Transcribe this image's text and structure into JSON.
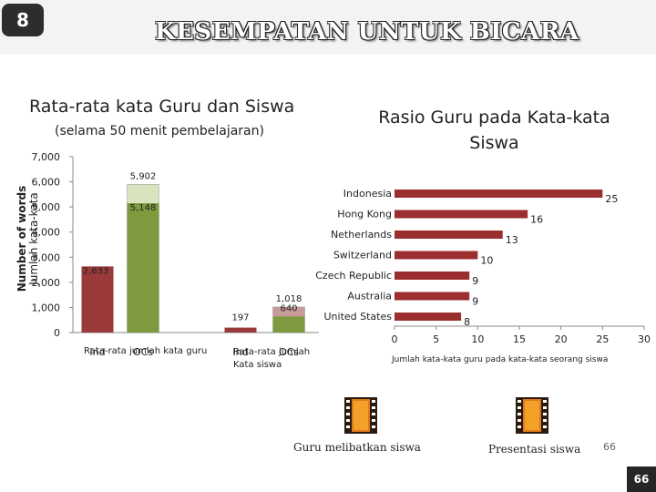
{
  "slide": {
    "number": "8",
    "headline": "KESEMPATAN UNTUK BICARA",
    "page_number_light": "66",
    "page_number_dark": "66"
  },
  "left_chart": {
    "title": "Rata-rata kata Guru dan Siswa",
    "subtitle": "(selama 50 menit pembelajaran)",
    "ylabel_1": "Number of words",
    "ylabel_2": "Jumlah kata-kata",
    "group_labels": [
      "Rata-rata jumlah kata guru",
      "Rata-rata jumlah Kata siswa"
    ]
  },
  "right_chart": {
    "title": "Rasio Guru pada Kata-kata Siswa",
    "xlabel": "Jumlah kata-kata guru pada kata-kata seorang siswa"
  },
  "icons": [
    {
      "name": "film-strip-icon",
      "caption": "Guru melibatkan siswa"
    },
    {
      "name": "film-strip-icon",
      "caption": "Presentasi siswa"
    }
  ],
  "colors": {
    "red_bar": "#9b3a3a",
    "green_bar": "#7e9a3f",
    "green_light": "#d8e4bf",
    "red_light": "#c99a9a",
    "hbar": "#9b2f2f"
  },
  "chart_data": [
    {
      "type": "bar",
      "title": "Rata-rata kata Guru dan Siswa",
      "ylabel": "Number of words",
      "ylim": [
        0,
        7000
      ],
      "yticks": [
        "0",
        "1,000",
        "2,000",
        "3,000",
        "4,000",
        "5,000",
        "6,000",
        "7,000"
      ],
      "categories": [
        "Ind",
        "OCs",
        "Ind",
        "OCs"
      ],
      "bars": [
        {
          "category": "Ind",
          "value": 2633,
          "label": "2,633",
          "stack": null
        },
        {
          "category": "OCs",
          "value": 5148,
          "label": "5,148",
          "stack": {
            "value": 5902,
            "label": "5,902"
          }
        },
        {
          "category": "Ind",
          "value": 197,
          "label": "197",
          "stack": null
        },
        {
          "category": "OCs",
          "value": 640,
          "label": "640",
          "stack": {
            "value": 1018,
            "label": "1,018"
          }
        }
      ]
    },
    {
      "type": "bar",
      "orientation": "horizontal",
      "title": "Rasio Guru pada Kata-kata Siswa",
      "xlabel": "Jumlah kata-kata guru pada kata-kata seorang siswa",
      "xlim": [
        0,
        30
      ],
      "xticks": [
        "0",
        "5",
        "10",
        "15",
        "20",
        "25",
        "30"
      ],
      "categories": [
        "Indonesia",
        "Hong Kong",
        "Netherlands",
        "Switzerland",
        "Czech Republic",
        "Australia",
        "United States"
      ],
      "values": [
        25,
        16,
        13,
        10,
        9,
        9,
        8
      ],
      "labels": [
        "25",
        "16",
        "13",
        "10",
        "9",
        "9",
        "8"
      ]
    }
  ]
}
